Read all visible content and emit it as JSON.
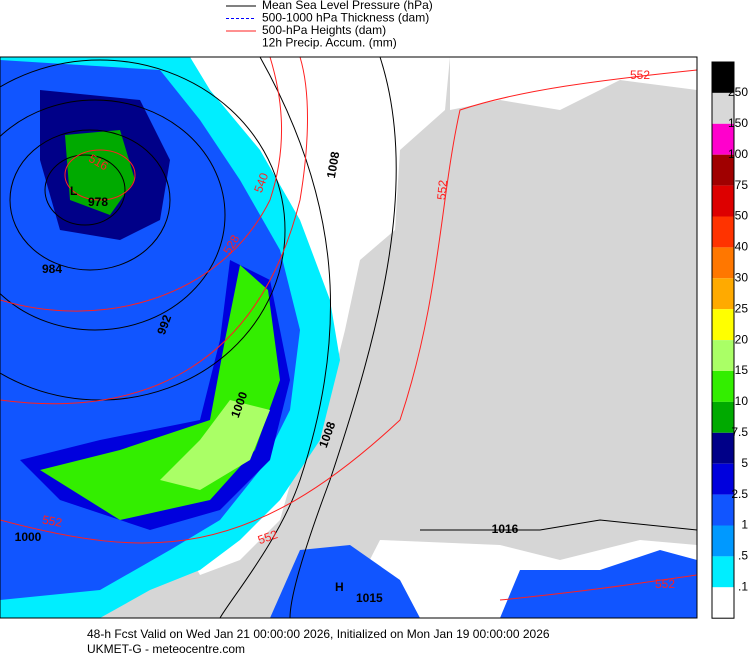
{
  "legend": {
    "items": [
      {
        "label": "Mean Sea Level Pressure (hPa)",
        "color": "#000000"
      },
      {
        "label": "500-1000 hPa Thickness (dam)",
        "color": "#0000ff"
      },
      {
        "label": "500-hPa Heights (dam)",
        "color": "#ff2020"
      },
      {
        "label": "12h Precip. Accum. (mm)"
      }
    ]
  },
  "colorbar": {
    "labels": [
      "250",
      "150",
      "100",
      "75",
      "50",
      "40",
      "30",
      "25",
      "20",
      "15",
      "10",
      "7.5",
      "5",
      "2.5",
      "1",
      ".5",
      ".1"
    ],
    "colors": [
      "#000000",
      "#d8d8d8",
      "#ff00cc",
      "#a00000",
      "#dd0000",
      "#ff3300",
      "#ff7700",
      "#ffaa00",
      "#ffff00",
      "#aaff66",
      "#33ee00",
      "#00aa00",
      "#000088",
      "#0000dd",
      "#1155ff",
      "#0099ff",
      "#00eeff",
      "#ffffff"
    ]
  },
  "map": {
    "pressure_centers": [
      {
        "letter": "L",
        "value": 978
      },
      {
        "letter": "H",
        "value": 1015
      }
    ],
    "isobar_labels": [
      1008,
      984,
      992,
      1000,
      1008,
      1016,
      1000
    ],
    "height_labels": [
      516,
      528,
      540,
      552,
      552,
      552,
      552,
      552
    ]
  },
  "footer": {
    "line1": "48-h Fcst Valid on Wed Jan 21 00:00:00 2026, Initialized on Mon Jan 19 00:00:00 2026",
    "line2": "UKMET-G  - meteocentre.com"
  }
}
